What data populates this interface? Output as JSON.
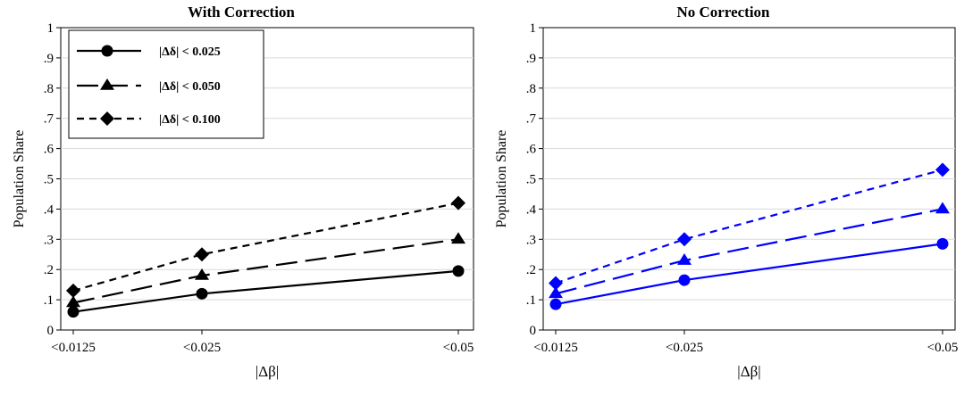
{
  "chart_data": [
    {
      "type": "line",
      "title": "With Correction",
      "xlabel": "|Δβ|",
      "ylabel": "Population Share",
      "categories": [
        "<0.0125",
        "<0.025",
        "<0.05"
      ],
      "yticks": [
        "0",
        ".1",
        ".2",
        ".3",
        ".4",
        ".5",
        ".6",
        ".7",
        ".8",
        ".9",
        "1"
      ],
      "ylim": [
        0,
        1
      ],
      "grid": true,
      "legend_position": "top-left",
      "color": "#000000",
      "series": [
        {
          "name": "|Δδ| < 0.025",
          "marker": "circle",
          "dash": "solid",
          "values": [
            0.06,
            0.12,
            0.195
          ]
        },
        {
          "name": "|Δδ| < 0.050",
          "marker": "triangle",
          "dash": "long-dash",
          "values": [
            0.09,
            0.18,
            0.3
          ]
        },
        {
          "name": "|Δδ| < 0.100",
          "marker": "diamond",
          "dash": "short-dash",
          "values": [
            0.13,
            0.25,
            0.42
          ]
        }
      ]
    },
    {
      "type": "line",
      "title": "No Correction",
      "xlabel": "|Δβ|",
      "ylabel": "Population Share",
      "categories": [
        "<0.0125",
        "<0.025",
        "<0.05"
      ],
      "yticks": [
        "0",
        ".1",
        ".2",
        ".3",
        ".4",
        ".5",
        ".6",
        ".7",
        ".8",
        ".9",
        "1"
      ],
      "ylim": [
        0,
        1
      ],
      "grid": true,
      "color": "#0000ff",
      "series": [
        {
          "marker": "circle",
          "dash": "solid",
          "values": [
            0.085,
            0.165,
            0.285
          ]
        },
        {
          "marker": "triangle",
          "dash": "long-dash",
          "values": [
            0.12,
            0.23,
            0.4
          ]
        },
        {
          "marker": "diamond",
          "dash": "short-dash",
          "values": [
            0.155,
            0.3,
            0.53
          ]
        }
      ]
    }
  ]
}
